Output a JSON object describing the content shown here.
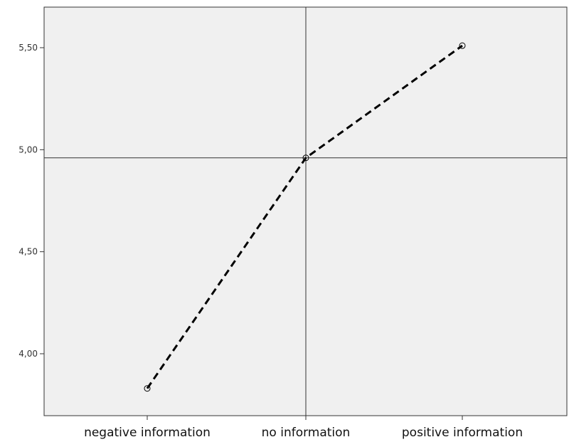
{
  "chart_data": {
    "type": "line",
    "categories": [
      "negative information",
      "no information",
      "positive information"
    ],
    "values": [
      3.83,
      4.96,
      5.51
    ],
    "ylim": [
      3.7,
      5.7
    ],
    "yticks": [
      4.0,
      4.5,
      5.0,
      5.5
    ],
    "ytick_labels": [
      "4,00",
      "4,50",
      "5,00",
      "5,50"
    ],
    "reference_lines": {
      "x_category": "no information",
      "y_value": 4.96
    },
    "line_style": "dashed",
    "marker": "open-circle",
    "grid": false,
    "plot_background": "#f0f0f0",
    "line_color": "#000000"
  }
}
